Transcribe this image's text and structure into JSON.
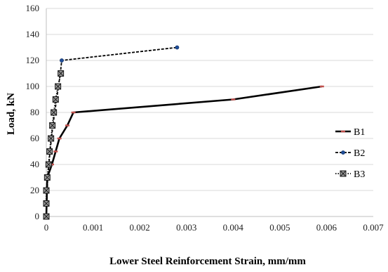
{
  "chart_data": {
    "type": "line",
    "title": "",
    "xlabel": "Lower Steel Reinforcement Strain, mm/mm",
    "ylabel": "Load, kN",
    "xlim": [
      0,
      0.007
    ],
    "ylim": [
      0,
      160
    ],
    "x_ticks": [
      "0",
      "0.001",
      "0.002",
      "0.003",
      "0.004",
      "0.005",
      "0.006",
      "0.007"
    ],
    "y_ticks": [
      "0",
      "20",
      "40",
      "60",
      "80",
      "100",
      "120",
      "140",
      "160"
    ],
    "grid": "horizontal",
    "legend_position": "right",
    "series": [
      {
        "name": "B1",
        "color": "#000000",
        "marker_color": "#c0504d",
        "line_style": "solid",
        "marker": "dash",
        "points": [
          [
            0,
            0
          ],
          [
            2e-05,
            30
          ],
          [
            0.00012,
            40
          ],
          [
            0.0002,
            50
          ],
          [
            0.00028,
            60
          ],
          [
            0.00045,
            70
          ],
          [
            0.00058,
            80
          ],
          [
            0.004,
            90
          ],
          [
            0.0059,
            100
          ]
        ]
      },
      {
        "name": "B2",
        "color": "#000000",
        "marker_color": "#1f4e9a",
        "line_style": "dashed",
        "marker": "circle",
        "points": [
          [
            0,
            0
          ],
          [
            3e-05,
            30
          ],
          [
            8e-05,
            50
          ],
          [
            0.00014,
            70
          ],
          [
            0.00022,
            90
          ],
          [
            0.0003,
            110
          ],
          [
            0.00033,
            120
          ],
          [
            0.0028,
            130
          ]
        ]
      },
      {
        "name": "B3",
        "color": "#000000",
        "marker_color": "#4a4a4a",
        "line_style": "dotted",
        "marker": "box-x",
        "points": [
          [
            0,
            0
          ],
          [
            0,
            10
          ],
          [
            0,
            20
          ],
          [
            2e-05,
            30
          ],
          [
            5e-05,
            40
          ],
          [
            7e-05,
            50
          ],
          [
            0.0001,
            60
          ],
          [
            0.00013,
            70
          ],
          [
            0.00016,
            80
          ],
          [
            0.0002,
            90
          ],
          [
            0.00025,
            100
          ],
          [
            0.00031,
            110
          ]
        ]
      }
    ]
  }
}
